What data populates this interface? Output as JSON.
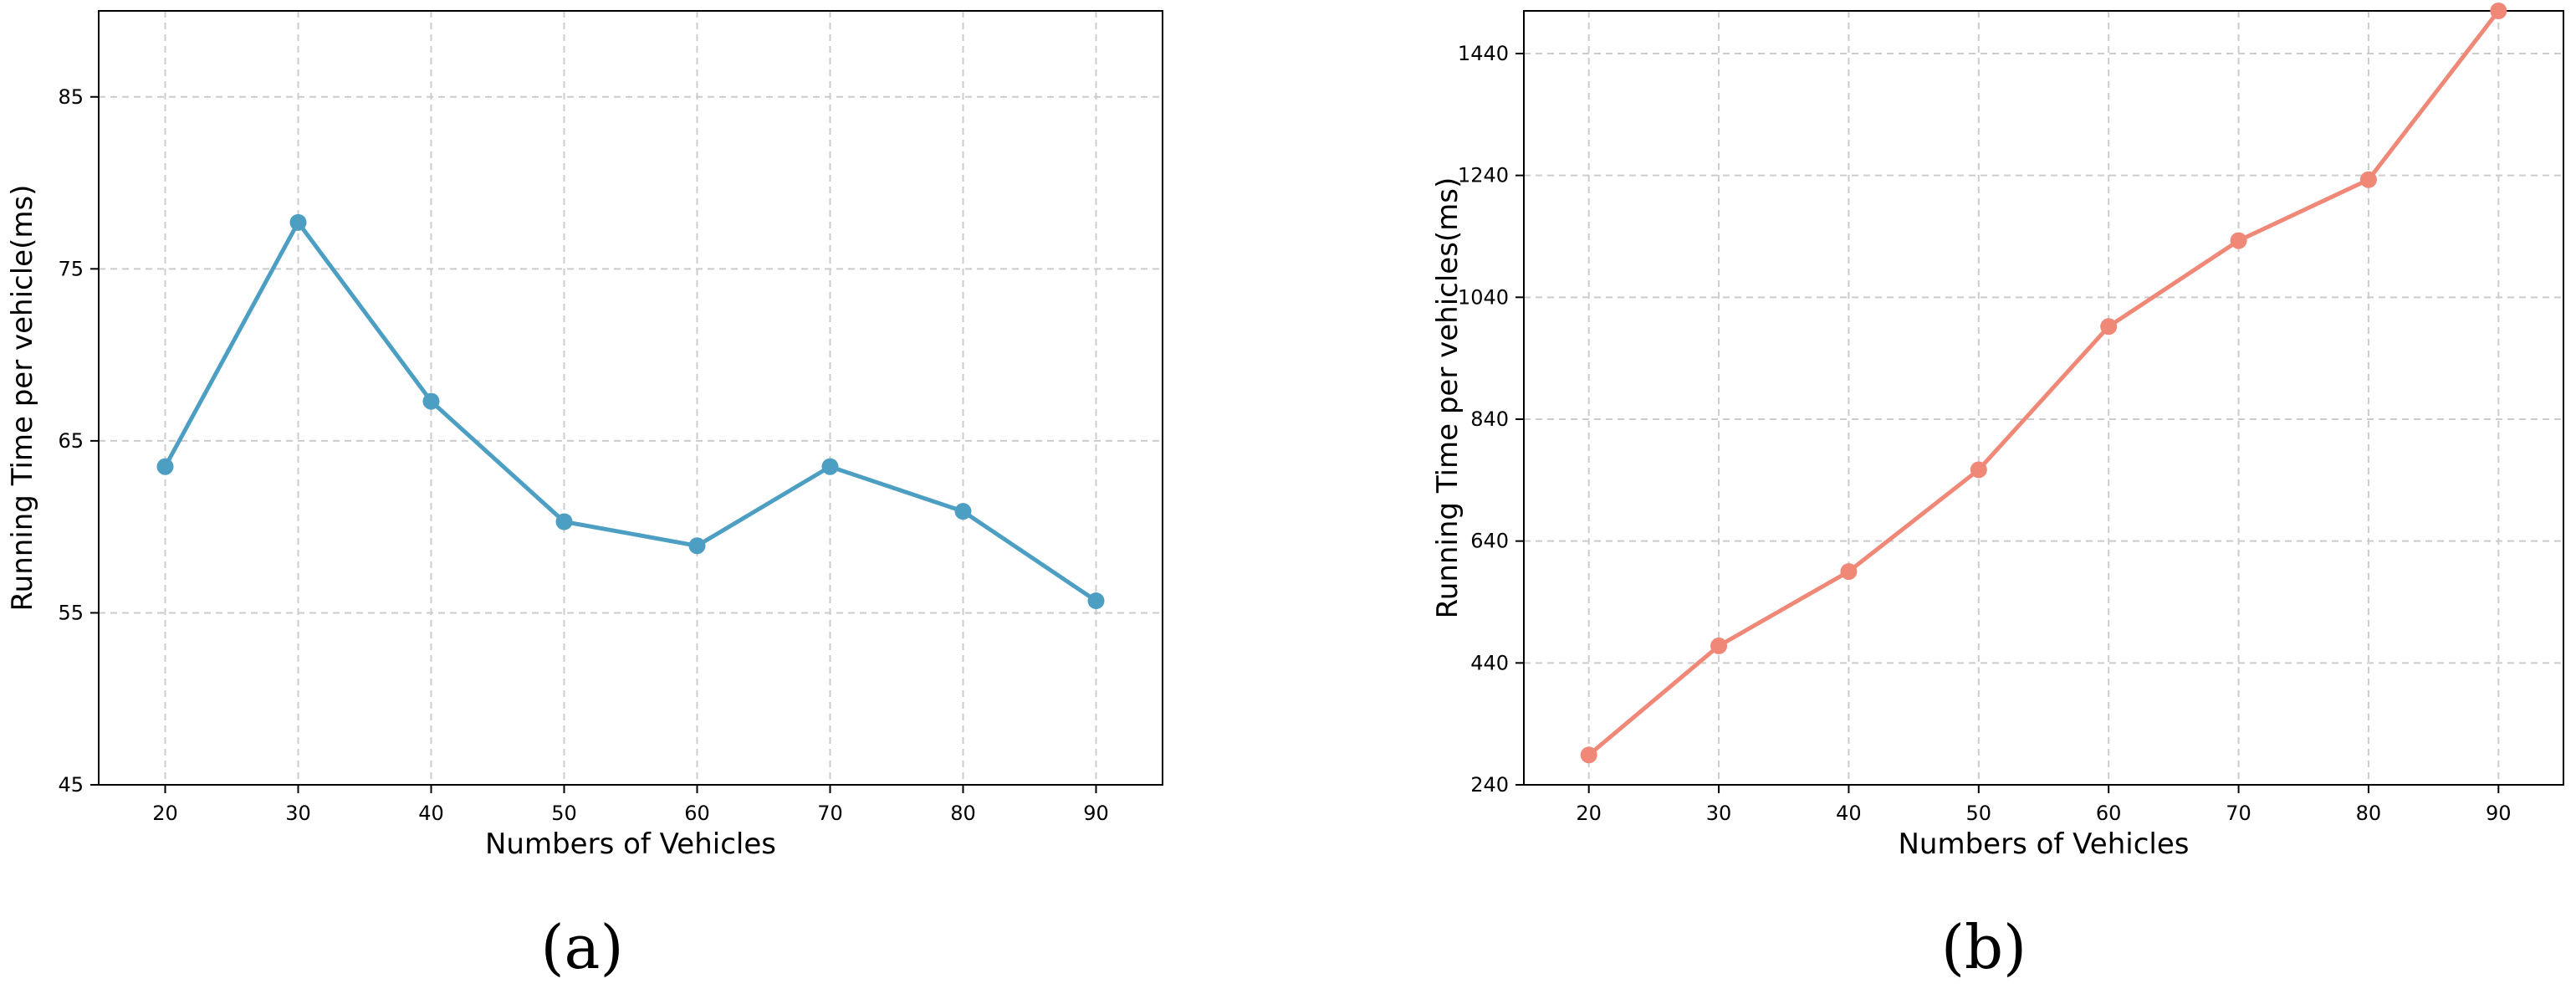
{
  "chart_data": [
    {
      "type": "line",
      "caption": "(a)",
      "xlabel": "Numbers of Vehicles",
      "ylabel": "Running Time per vehicle(ms)",
      "x": [
        20,
        30,
        40,
        50,
        60,
        70,
        80,
        90
      ],
      "xticks": [
        "20",
        "30",
        "40",
        "50",
        "60",
        "70",
        "80",
        "90"
      ],
      "yticks": [
        "45",
        "55",
        "65",
        "75",
        "85"
      ],
      "xlim": [
        15,
        95
      ],
      "ylim": [
        45,
        90
      ],
      "grid": true,
      "series": [
        {
          "values": [
            63.5,
            77.7,
            67.3,
            60.3,
            58.9,
            63.5,
            60.9,
            55.7
          ],
          "color": "#4c9fc2"
        }
      ]
    },
    {
      "type": "line",
      "caption": "(b)",
      "xlabel": "Numbers of Vehicles",
      "ylabel": "Running Time per vehicles(ms)",
      "x": [
        20,
        30,
        40,
        50,
        60,
        70,
        80,
        90
      ],
      "xticks": [
        "20",
        "30",
        "40",
        "50",
        "60",
        "70",
        "80",
        "90"
      ],
      "yticks": [
        "240",
        "440",
        "640",
        "840",
        "1040",
        "1240",
        "1440"
      ],
      "xlim": [
        15,
        95
      ],
      "ylim": [
        240,
        1510
      ],
      "grid": true,
      "series": [
        {
          "values": [
            289,
            468,
            590,
            757,
            992,
            1133,
            1233,
            1510
          ],
          "color": "#f08878"
        }
      ]
    }
  ]
}
